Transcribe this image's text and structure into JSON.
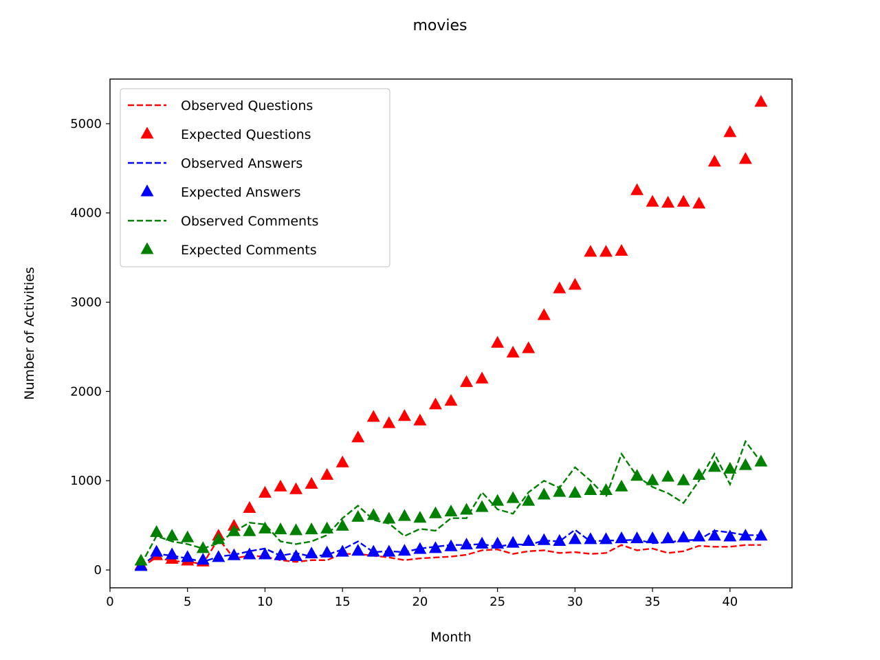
{
  "chart_data": {
    "type": "line",
    "title": "movies",
    "xlabel": "Month",
    "ylabel": "Number of Activities",
    "xlim": [
      0,
      44
    ],
    "ylim": [
      -200,
      5500
    ],
    "xticks": [
      0,
      5,
      10,
      15,
      20,
      25,
      30,
      35,
      40
    ],
    "yticks": [
      0,
      1000,
      2000,
      3000,
      4000,
      5000
    ],
    "grid": false,
    "legend_position": "upper-left",
    "x": [
      2,
      3,
      4,
      5,
      6,
      7,
      8,
      9,
      10,
      11,
      12,
      13,
      14,
      15,
      16,
      17,
      18,
      19,
      20,
      21,
      22,
      23,
      24,
      25,
      26,
      27,
      28,
      29,
      30,
      31,
      32,
      33,
      34,
      35,
      36,
      37,
      38,
      39,
      40,
      41,
      42
    ],
    "series": [
      {
        "name": "Observed Questions",
        "style": "dashed",
        "color": "#ff0000",
        "values": [
          30,
          140,
          100,
          90,
          70,
          350,
          130,
          160,
          150,
          110,
          90,
          110,
          110,
          180,
          180,
          160,
          140,
          110,
          130,
          140,
          150,
          170,
          220,
          230,
          180,
          210,
          220,
          190,
          200,
          180,
          190,
          280,
          220,
          240,
          190,
          210,
          270,
          260,
          260,
          280,
          280
        ]
      },
      {
        "name": "Expected Questions",
        "style": "triangle",
        "color": "#ff0000",
        "values": [
          50,
          160,
          120,
          100,
          90,
          380,
          490,
          690,
          860,
          930,
          900,
          960,
          1060,
          1200,
          1480,
          1710,
          1640,
          1720,
          1670,
          1850,
          1890,
          2100,
          2140,
          2540,
          2430,
          2480,
          2850,
          3150,
          3190,
          3560,
          3560,
          3570,
          4250,
          4120,
          4110,
          4120,
          4100,
          4570,
          4900,
          4600,
          5240
        ]
      },
      {
        "name": "Observed Answers",
        "style": "dashed",
        "color": "#0000ff",
        "values": [
          40,
          180,
          160,
          130,
          90,
          150,
          170,
          210,
          240,
          160,
          190,
          150,
          170,
          230,
          320,
          200,
          210,
          200,
          240,
          260,
          280,
          280,
          290,
          260,
          290,
          280,
          330,
          320,
          450,
          320,
          330,
          330,
          340,
          300,
          310,
          330,
          340,
          440,
          420,
          390,
          390
        ]
      },
      {
        "name": "Expected Answers",
        "style": "triangle",
        "color": "#0000ff",
        "values": [
          40,
          200,
          170,
          140,
          110,
          140,
          160,
          170,
          170,
          160,
          150,
          180,
          190,
          200,
          210,
          200,
          200,
          210,
          230,
          240,
          260,
          280,
          290,
          290,
          300,
          320,
          330,
          320,
          340,
          340,
          340,
          350,
          350,
          350,
          350,
          360,
          370,
          380,
          370,
          380,
          380
        ]
      },
      {
        "name": "Observed Comments",
        "style": "dashed",
        "color": "#008000",
        "values": [
          60,
          380,
          320,
          290,
          240,
          300,
          430,
          530,
          510,
          320,
          290,
          320,
          390,
          580,
          720,
          560,
          520,
          380,
          460,
          440,
          580,
          580,
          870,
          680,
          630,
          870,
          1000,
          920,
          1150,
          1000,
          820,
          1300,
          1050,
          930,
          860,
          750,
          1000,
          1300,
          960,
          1440,
          1210
        ]
      },
      {
        "name": "Expected Comments",
        "style": "triangle",
        "color": "#008000",
        "values": [
          100,
          420,
          380,
          360,
          240,
          340,
          430,
          430,
          460,
          450,
          440,
          450,
          460,
          490,
          590,
          610,
          570,
          600,
          580,
          630,
          650,
          670,
          700,
          770,
          800,
          770,
          840,
          870,
          860,
          890,
          890,
          930,
          1050,
          1000,
          1040,
          1000,
          1060,
          1150,
          1130,
          1170,
          1210
        ]
      }
    ]
  }
}
